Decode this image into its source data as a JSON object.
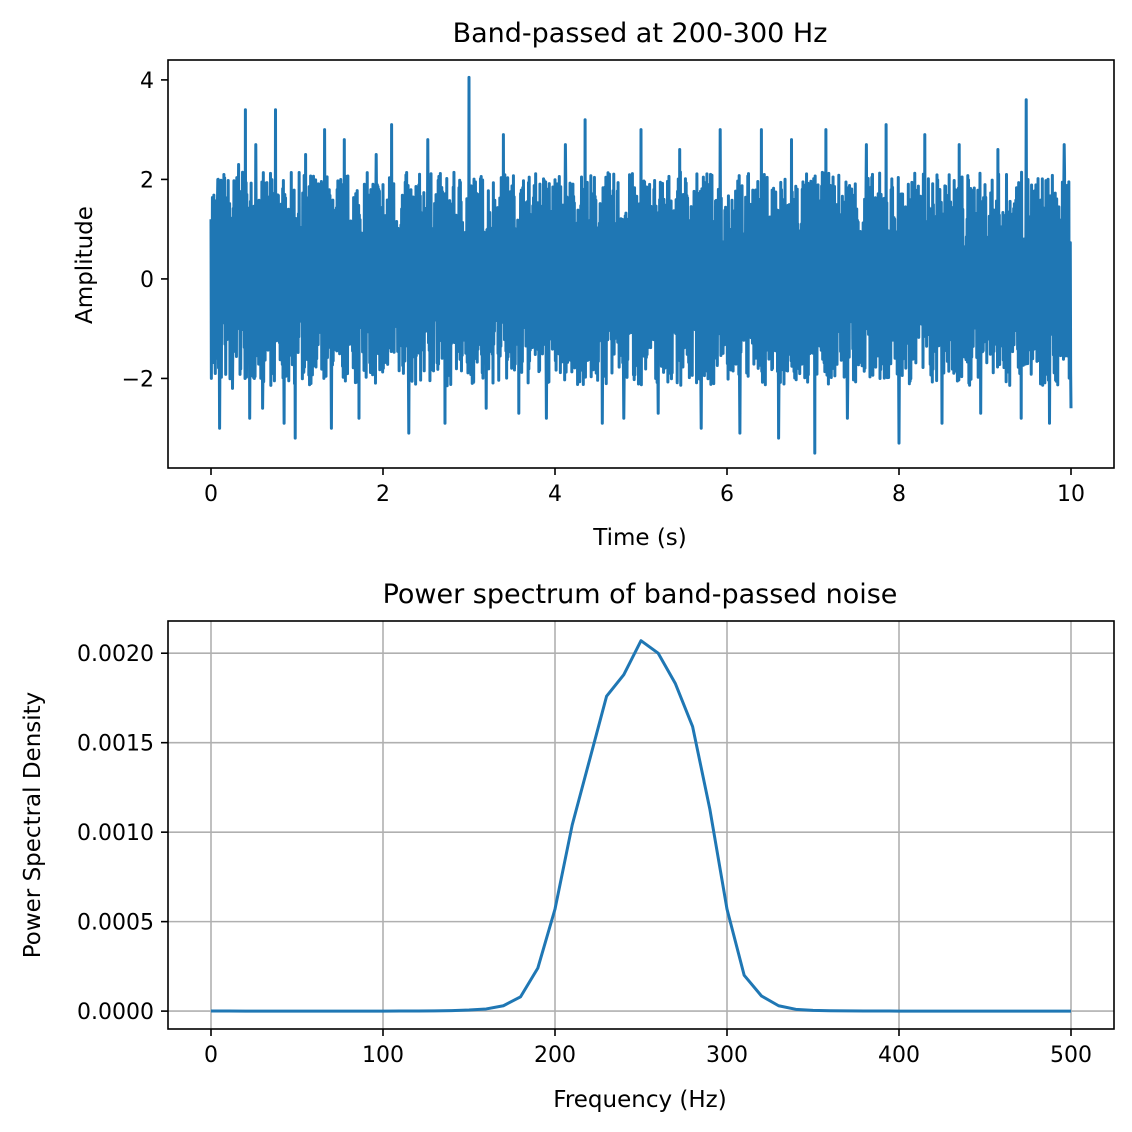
{
  "chart_data": [
    {
      "type": "line",
      "title": "Band-passed at 200-300 Hz",
      "xlabel": "Time (s)",
      "ylabel": "Amplitude",
      "xlim": [
        -0.5,
        10.5
      ],
      "ylim": [
        -3.8,
        4.4
      ],
      "xticks": [
        0,
        2,
        4,
        6,
        8,
        10
      ],
      "xtick_labels": [
        "0",
        "2",
        "4",
        "6",
        "8",
        "10"
      ],
      "yticks": [
        -2,
        0,
        2,
        4
      ],
      "ytick_labels": [
        "−2",
        "0",
        "2",
        "4"
      ],
      "grid": false,
      "color": "#1f77b4",
      "series": [
        {
          "description_x": "time samples from 0 to 10 s",
          "x_range": [
            0,
            10
          ],
          "envelope_typical": [
            -2.0,
            2.0
          ],
          "peaks": [
            {
              "x": 0.0,
              "y": 1.2
            },
            {
              "x": 0.05,
              "y": -1.9
            },
            {
              "x": 0.08,
              "y": 2.0
            },
            {
              "x": 0.1,
              "y": -3.0
            },
            {
              "x": 0.15,
              "y": 2.1
            },
            {
              "x": 0.25,
              "y": -2.2
            },
            {
              "x": 0.32,
              "y": 2.3
            },
            {
              "x": 0.4,
              "y": 3.4
            },
            {
              "x": 0.45,
              "y": -2.8
            },
            {
              "x": 0.52,
              "y": 2.7
            },
            {
              "x": 0.6,
              "y": -2.6
            },
            {
              "x": 0.75,
              "y": 3.4
            },
            {
              "x": 0.85,
              "y": -2.9
            },
            {
              "x": 0.98,
              "y": -3.2
            },
            {
              "x": 1.1,
              "y": 2.5
            },
            {
              "x": 1.32,
              "y": 3.0
            },
            {
              "x": 1.4,
              "y": -3.0
            },
            {
              "x": 1.55,
              "y": 2.8
            },
            {
              "x": 1.72,
              "y": -2.8
            },
            {
              "x": 1.92,
              "y": 2.5
            },
            {
              "x": 2.1,
              "y": 3.1
            },
            {
              "x": 2.3,
              "y": -3.1
            },
            {
              "x": 2.52,
              "y": 2.8
            },
            {
              "x": 2.72,
              "y": -2.9
            },
            {
              "x": 3.0,
              "y": 4.05
            },
            {
              "x": 3.2,
              "y": -2.6
            },
            {
              "x": 3.4,
              "y": 2.9
            },
            {
              "x": 3.58,
              "y": -2.7
            },
            {
              "x": 3.9,
              "y": -2.8
            },
            {
              "x": 4.12,
              "y": 2.7
            },
            {
              "x": 4.35,
              "y": 3.2
            },
            {
              "x": 4.55,
              "y": -2.9
            },
            {
              "x": 4.8,
              "y": -2.8
            },
            {
              "x": 5.0,
              "y": 3.0
            },
            {
              "x": 5.2,
              "y": -2.7
            },
            {
              "x": 5.45,
              "y": 2.6
            },
            {
              "x": 5.7,
              "y": -3.0
            },
            {
              "x": 5.92,
              "y": 3.0
            },
            {
              "x": 6.15,
              "y": -3.1
            },
            {
              "x": 6.4,
              "y": 3.0
            },
            {
              "x": 6.6,
              "y": -3.2
            },
            {
              "x": 6.75,
              "y": 2.8
            },
            {
              "x": 7.02,
              "y": -3.5
            },
            {
              "x": 7.15,
              "y": 3.0
            },
            {
              "x": 7.4,
              "y": -2.8
            },
            {
              "x": 7.62,
              "y": 2.7
            },
            {
              "x": 7.85,
              "y": 3.1
            },
            {
              "x": 8.0,
              "y": -3.3
            },
            {
              "x": 8.3,
              "y": 2.9
            },
            {
              "x": 8.5,
              "y": -2.9
            },
            {
              "x": 8.7,
              "y": 2.7
            },
            {
              "x": 8.95,
              "y": -2.7
            },
            {
              "x": 9.15,
              "y": 2.6
            },
            {
              "x": 9.42,
              "y": -2.8
            },
            {
              "x": 9.48,
              "y": 3.6
            },
            {
              "x": 9.75,
              "y": -2.9
            },
            {
              "x": 9.92,
              "y": 2.7
            },
            {
              "x": 10.0,
              "y": -2.6
            }
          ]
        }
      ]
    },
    {
      "type": "line",
      "title": "Power spectrum of band-passed noise",
      "xlabel": "Frequency (Hz)",
      "ylabel": "Power Spectral Density",
      "xlim": [
        -25,
        525
      ],
      "ylim": [
        -0.0001,
        0.00218
      ],
      "xticks": [
        0,
        100,
        200,
        300,
        400,
        500
      ],
      "xtick_labels": [
        "0",
        "100",
        "200",
        "300",
        "400",
        "500"
      ],
      "yticks": [
        0,
        0.0005,
        0.001,
        0.0015,
        0.002
      ],
      "ytick_labels": [
        "0.0000",
        "0.0005",
        "0.0010",
        "0.0015",
        "0.0020"
      ],
      "grid": true,
      "color": "#1f77b4",
      "x": [
        0,
        10,
        20,
        30,
        40,
        50,
        60,
        70,
        80,
        90,
        100,
        110,
        120,
        130,
        140,
        150,
        160,
        170,
        180,
        190,
        200,
        210,
        220,
        230,
        240,
        250,
        260,
        270,
        280,
        290,
        300,
        310,
        320,
        330,
        340,
        350,
        360,
        370,
        380,
        390,
        400,
        410,
        420,
        430,
        440,
        450,
        460,
        470,
        480,
        490,
        500
      ],
      "series": [
        {
          "values": [
            5e-07,
            3e-07,
            0,
            0,
            0,
            0,
            0,
            0,
            0,
            0,
            2e-07,
            3e-07,
            5e-07,
            1e-06,
            3e-06,
            6e-06,
            1.2e-05,
            3e-05,
            8e-05,
            0.00024,
            0.00057,
            0.00104,
            0.0014,
            0.00176,
            0.00188,
            0.00207,
            0.002,
            0.00183,
            0.00159,
            0.00113,
            0.00057,
            0.0002,
            8.5e-05,
            3e-05,
            1e-05,
            4e-06,
            2e-06,
            1e-06,
            5e-07,
            3e-07,
            2e-07,
            0,
            0,
            0,
            0,
            0,
            0,
            0,
            0,
            0,
            0
          ]
        }
      ]
    }
  ]
}
